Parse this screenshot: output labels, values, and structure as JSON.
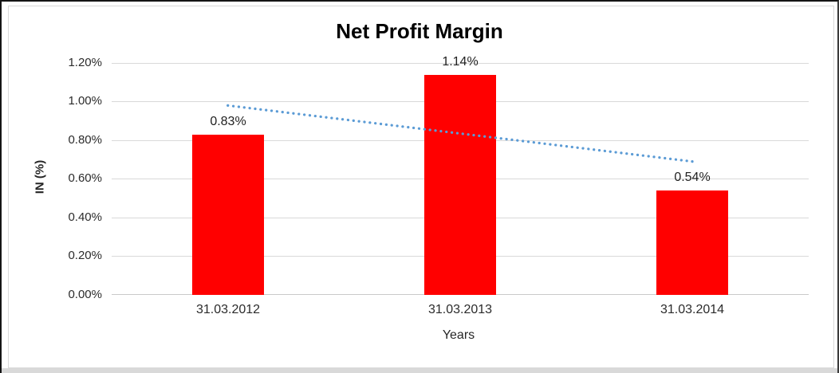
{
  "chart_data": {
    "type": "bar",
    "title": "Net Profit Margin",
    "xlabel": "Years",
    "ylabel": "IN (%)",
    "categories": [
      "31.03.2012",
      "31.03.2013",
      "31.03.2014"
    ],
    "values": [
      0.83,
      1.14,
      0.54
    ],
    "data_labels": [
      "0.83%",
      "1.14%",
      "0.54%"
    ],
    "ylim": [
      0,
      1.2
    ],
    "ytick_step": 0.2,
    "ytick_labels": [
      "0.00%",
      "0.20%",
      "0.40%",
      "0.60%",
      "0.80%",
      "1.00%",
      "1.20%"
    ],
    "grid": true,
    "legend": "none",
    "bar_color": "#FF0000",
    "gridline_color": "#d9d9d9",
    "trendline": {
      "type": "linear",
      "style": "dotted",
      "color": "#5B9BD5",
      "start_value": 0.98,
      "end_value": 0.69
    }
  }
}
